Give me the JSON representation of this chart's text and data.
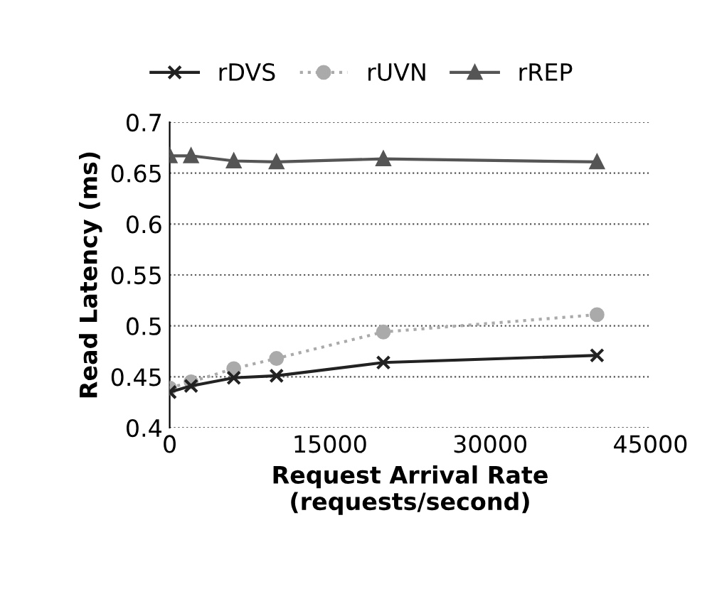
{
  "chart_data": {
    "type": "line",
    "xlabel": "Request Arrival Rate\n(requests/second)",
    "ylabel": "Read Latency (ms)",
    "x": [
      0,
      2000,
      6000,
      10000,
      20000,
      40000
    ],
    "series": [
      {
        "name": "rDVS",
        "color": "#222222",
        "marker": "cross",
        "line_style": "solid",
        "values": [
          0.435,
          0.441,
          0.449,
          0.451,
          0.464,
          0.471
        ]
      },
      {
        "name": "rUVN",
        "color": "#aaaaaa",
        "marker": "circle",
        "line_style": "dotted",
        "values": [
          0.439,
          0.445,
          0.458,
          0.468,
          0.494,
          0.511
        ]
      },
      {
        "name": "rREP",
        "color": "#555555",
        "marker": "triangle",
        "line_style": "solid",
        "values": [
          0.667,
          0.667,
          0.662,
          0.661,
          0.664,
          0.661
        ]
      }
    ],
    "xlim": [
      0,
      45000
    ],
    "xticks": [
      0,
      15000,
      30000,
      45000
    ],
    "ylim": [
      0.4,
      0.7
    ],
    "yticks": [
      0.4,
      0.45,
      0.5,
      0.55,
      0.6,
      0.65,
      0.7
    ],
    "grid": "y",
    "legend": "top"
  }
}
